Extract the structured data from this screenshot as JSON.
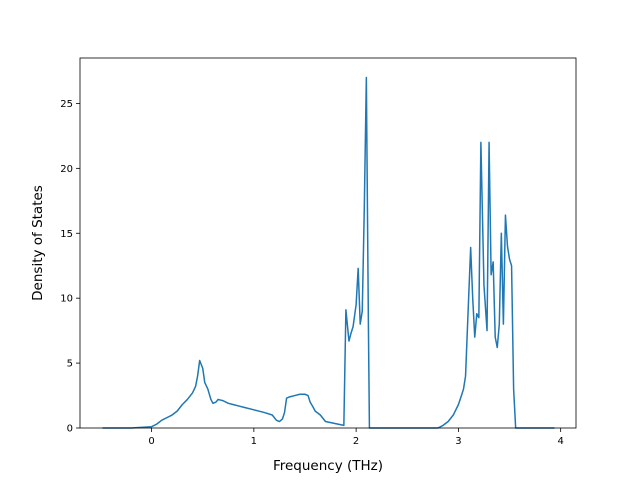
{
  "chart_data": {
    "type": "line",
    "title": "",
    "xlabel": "Frequency (THz)",
    "ylabel": "Density of States",
    "xlim": [
      -0.7,
      4.15
    ],
    "ylim": [
      0,
      28.5
    ],
    "xticks": [
      0,
      1,
      2,
      3,
      4
    ],
    "yticks": [
      0,
      5,
      10,
      15,
      20,
      25
    ],
    "grid": false,
    "legend": "none",
    "color": "#1f77b4",
    "series": [
      {
        "x": [
          -0.48,
          -0.2,
          0,
          0.05,
          0.1,
          0.15,
          0.2,
          0.25,
          0.3,
          0.35,
          0.4,
          0.43,
          0.45,
          0.47,
          0.5,
          0.52,
          0.55,
          0.58,
          0.6,
          0.63,
          0.65,
          0.7,
          0.75,
          0.8,
          0.85,
          0.9,
          1.0,
          1.1,
          1.18,
          1.22,
          1.25,
          1.28,
          1.3,
          1.32,
          1.35,
          1.4,
          1.45,
          1.5,
          1.53,
          1.55,
          1.58,
          1.6,
          1.65,
          1.7,
          1.88,
          1.9,
          1.91,
          1.93,
          1.95,
          1.97,
          2.0,
          2.02,
          2.04,
          2.06,
          2.08,
          2.1,
          2.12,
          2.13,
          2.5,
          2.8,
          2.85,
          2.9,
          2.95,
          3.0,
          3.03,
          3.05,
          3.07,
          3.09,
          3.12,
          3.14,
          3.16,
          3.18,
          3.2,
          3.22,
          3.25,
          3.28,
          3.3,
          3.32,
          3.34,
          3.36,
          3.38,
          3.4,
          3.42,
          3.44,
          3.46,
          3.48,
          3.5,
          3.52,
          3.54,
          3.56,
          3.58,
          3.6,
          3.7,
          3.94
        ],
        "y": [
          0,
          0,
          0.1,
          0.3,
          0.6,
          0.8,
          1.0,
          1.3,
          1.8,
          2.2,
          2.7,
          3.2,
          4.0,
          5.2,
          4.6,
          3.5,
          3.0,
          2.2,
          1.9,
          2.0,
          2.2,
          2.1,
          1.9,
          1.8,
          1.7,
          1.6,
          1.4,
          1.2,
          1.0,
          0.6,
          0.5,
          0.7,
          1.2,
          2.3,
          2.4,
          2.5,
          2.6,
          2.6,
          2.5,
          2.0,
          1.6,
          1.3,
          1.0,
          0.5,
          0.2,
          9.1,
          8.3,
          6.7,
          7.3,
          7.8,
          9.5,
          12.3,
          8.0,
          9.0,
          17.0,
          27.0,
          8.0,
          0,
          0,
          0,
          0.2,
          0.5,
          1.0,
          1.8,
          2.5,
          3.0,
          4.0,
          8.0,
          13.9,
          10.0,
          7.0,
          8.8,
          8.5,
          22.0,
          11.0,
          7.5,
          22.0,
          11.8,
          12.8,
          7.0,
          6.2,
          8.0,
          15.0,
          8.0,
          16.4,
          14.0,
          13.0,
          12.5,
          3.0,
          0,
          0,
          0,
          0,
          0
        ]
      }
    ]
  }
}
